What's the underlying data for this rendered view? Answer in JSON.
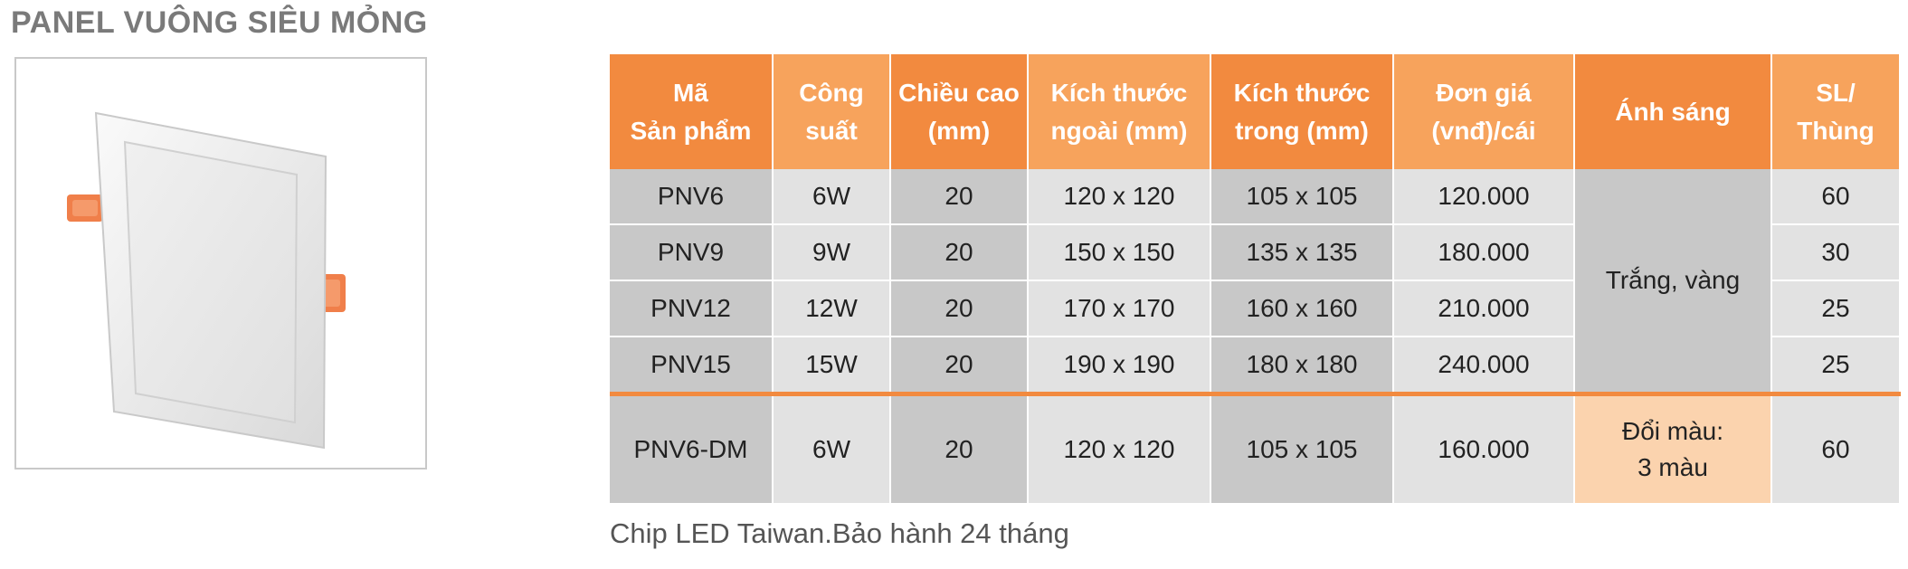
{
  "title": "PANEL VUÔNG SIÊU MỎNG",
  "headers": [
    [
      "Mã",
      "Sản phẩm"
    ],
    [
      "Công",
      "suất"
    ],
    [
      "Chiều cao",
      "(mm)"
    ],
    [
      "Kích thước",
      "ngoài (mm)"
    ],
    [
      "Kích thước",
      "trong (mm)"
    ],
    [
      "Đơn giá",
      "(vnđ)/cái"
    ],
    [
      "Ánh sáng",
      ""
    ],
    [
      "SL/",
      "Thùng"
    ]
  ],
  "rows": [
    {
      "code": "PNV6",
      "power": "6W",
      "height": "20",
      "outer": "120 x 120",
      "inner": "105 x 105",
      "price": "120.000",
      "qty": "60"
    },
    {
      "code": "PNV9",
      "power": "9W",
      "height": "20",
      "outer": "150 x 150",
      "inner": "135 x 135",
      "price": "180.000",
      "qty": "30"
    },
    {
      "code": "PNV12",
      "power": "12W",
      "height": "20",
      "outer": "170 x 170",
      "inner": "160 x 160",
      "price": "210.000",
      "qty": "25"
    },
    {
      "code": "PNV15",
      "power": "15W",
      "height": "20",
      "outer": "190 x 190",
      "inner": "180 x 180",
      "price": "240.000",
      "qty": "25"
    },
    {
      "code": "PNV6-DM",
      "power": "6W",
      "height": "20",
      "outer": "120 x 120",
      "inner": "105 x 105",
      "price": "160.000",
      "qty": "60"
    }
  ],
  "light_group_1": "Trắng, vàng",
  "light_group_2": [
    "Đổi màu:",
    "3 màu"
  ],
  "footnote": "Chip LED Taiwan.Bảo hành 24 tháng",
  "colors": {
    "header_dark": "#f28a3f",
    "header_light": "#f7a35c",
    "cell_gray_dark": "#c8c8c8",
    "cell_gray_light": "#e2e2e2",
    "cell_peach": "#fbd3ae",
    "title_gray": "#7a7a7a"
  }
}
